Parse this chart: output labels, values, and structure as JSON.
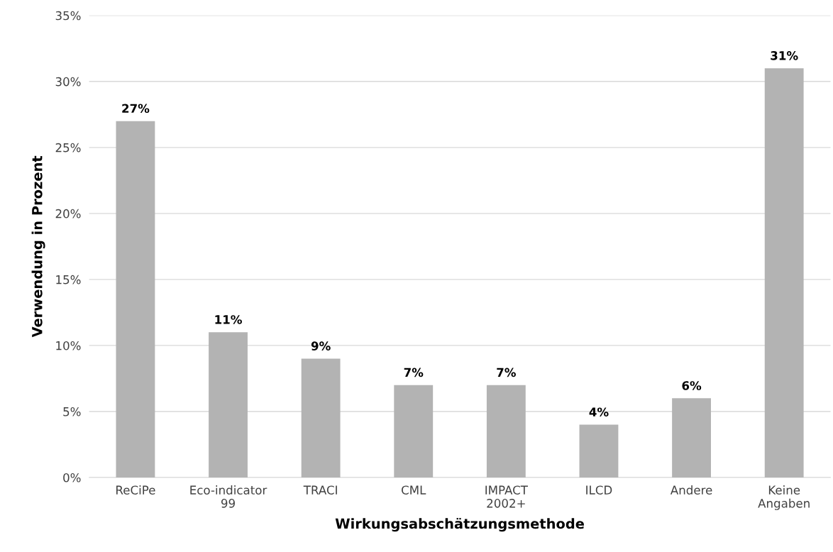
{
  "chart_data": {
    "type": "bar",
    "xlabel": "Wirkungsabschätzungsmethode",
    "ylabel": "Verwendung in Prozent",
    "categories": [
      "ReCiPe",
      "Eco-indicator\n99",
      "TRACI",
      "CML",
      "IMPACT\n2002+",
      "ILCD",
      "Andere",
      "Keine\nAngaben"
    ],
    "values": [
      27,
      11,
      9,
      7,
      7,
      4,
      6,
      31
    ],
    "value_labels": [
      "27%",
      "11%",
      "9%",
      "7%",
      "7%",
      "4%",
      "6%",
      "31%"
    ],
    "color": "#b3b3b3",
    "ylim": [
      0,
      35
    ],
    "yticks": [
      {
        "value": 0,
        "label": "0%"
      },
      {
        "value": 5,
        "label": "5%"
      },
      {
        "value": 10,
        "label": "10%"
      },
      {
        "value": 15,
        "label": "15%"
      },
      {
        "value": 20,
        "label": "20%"
      },
      {
        "value": 25,
        "label": "25%"
      },
      {
        "value": 30,
        "label": "30%"
      },
      {
        "value": 35,
        "label": "35%"
      }
    ],
    "grid": "y"
  }
}
